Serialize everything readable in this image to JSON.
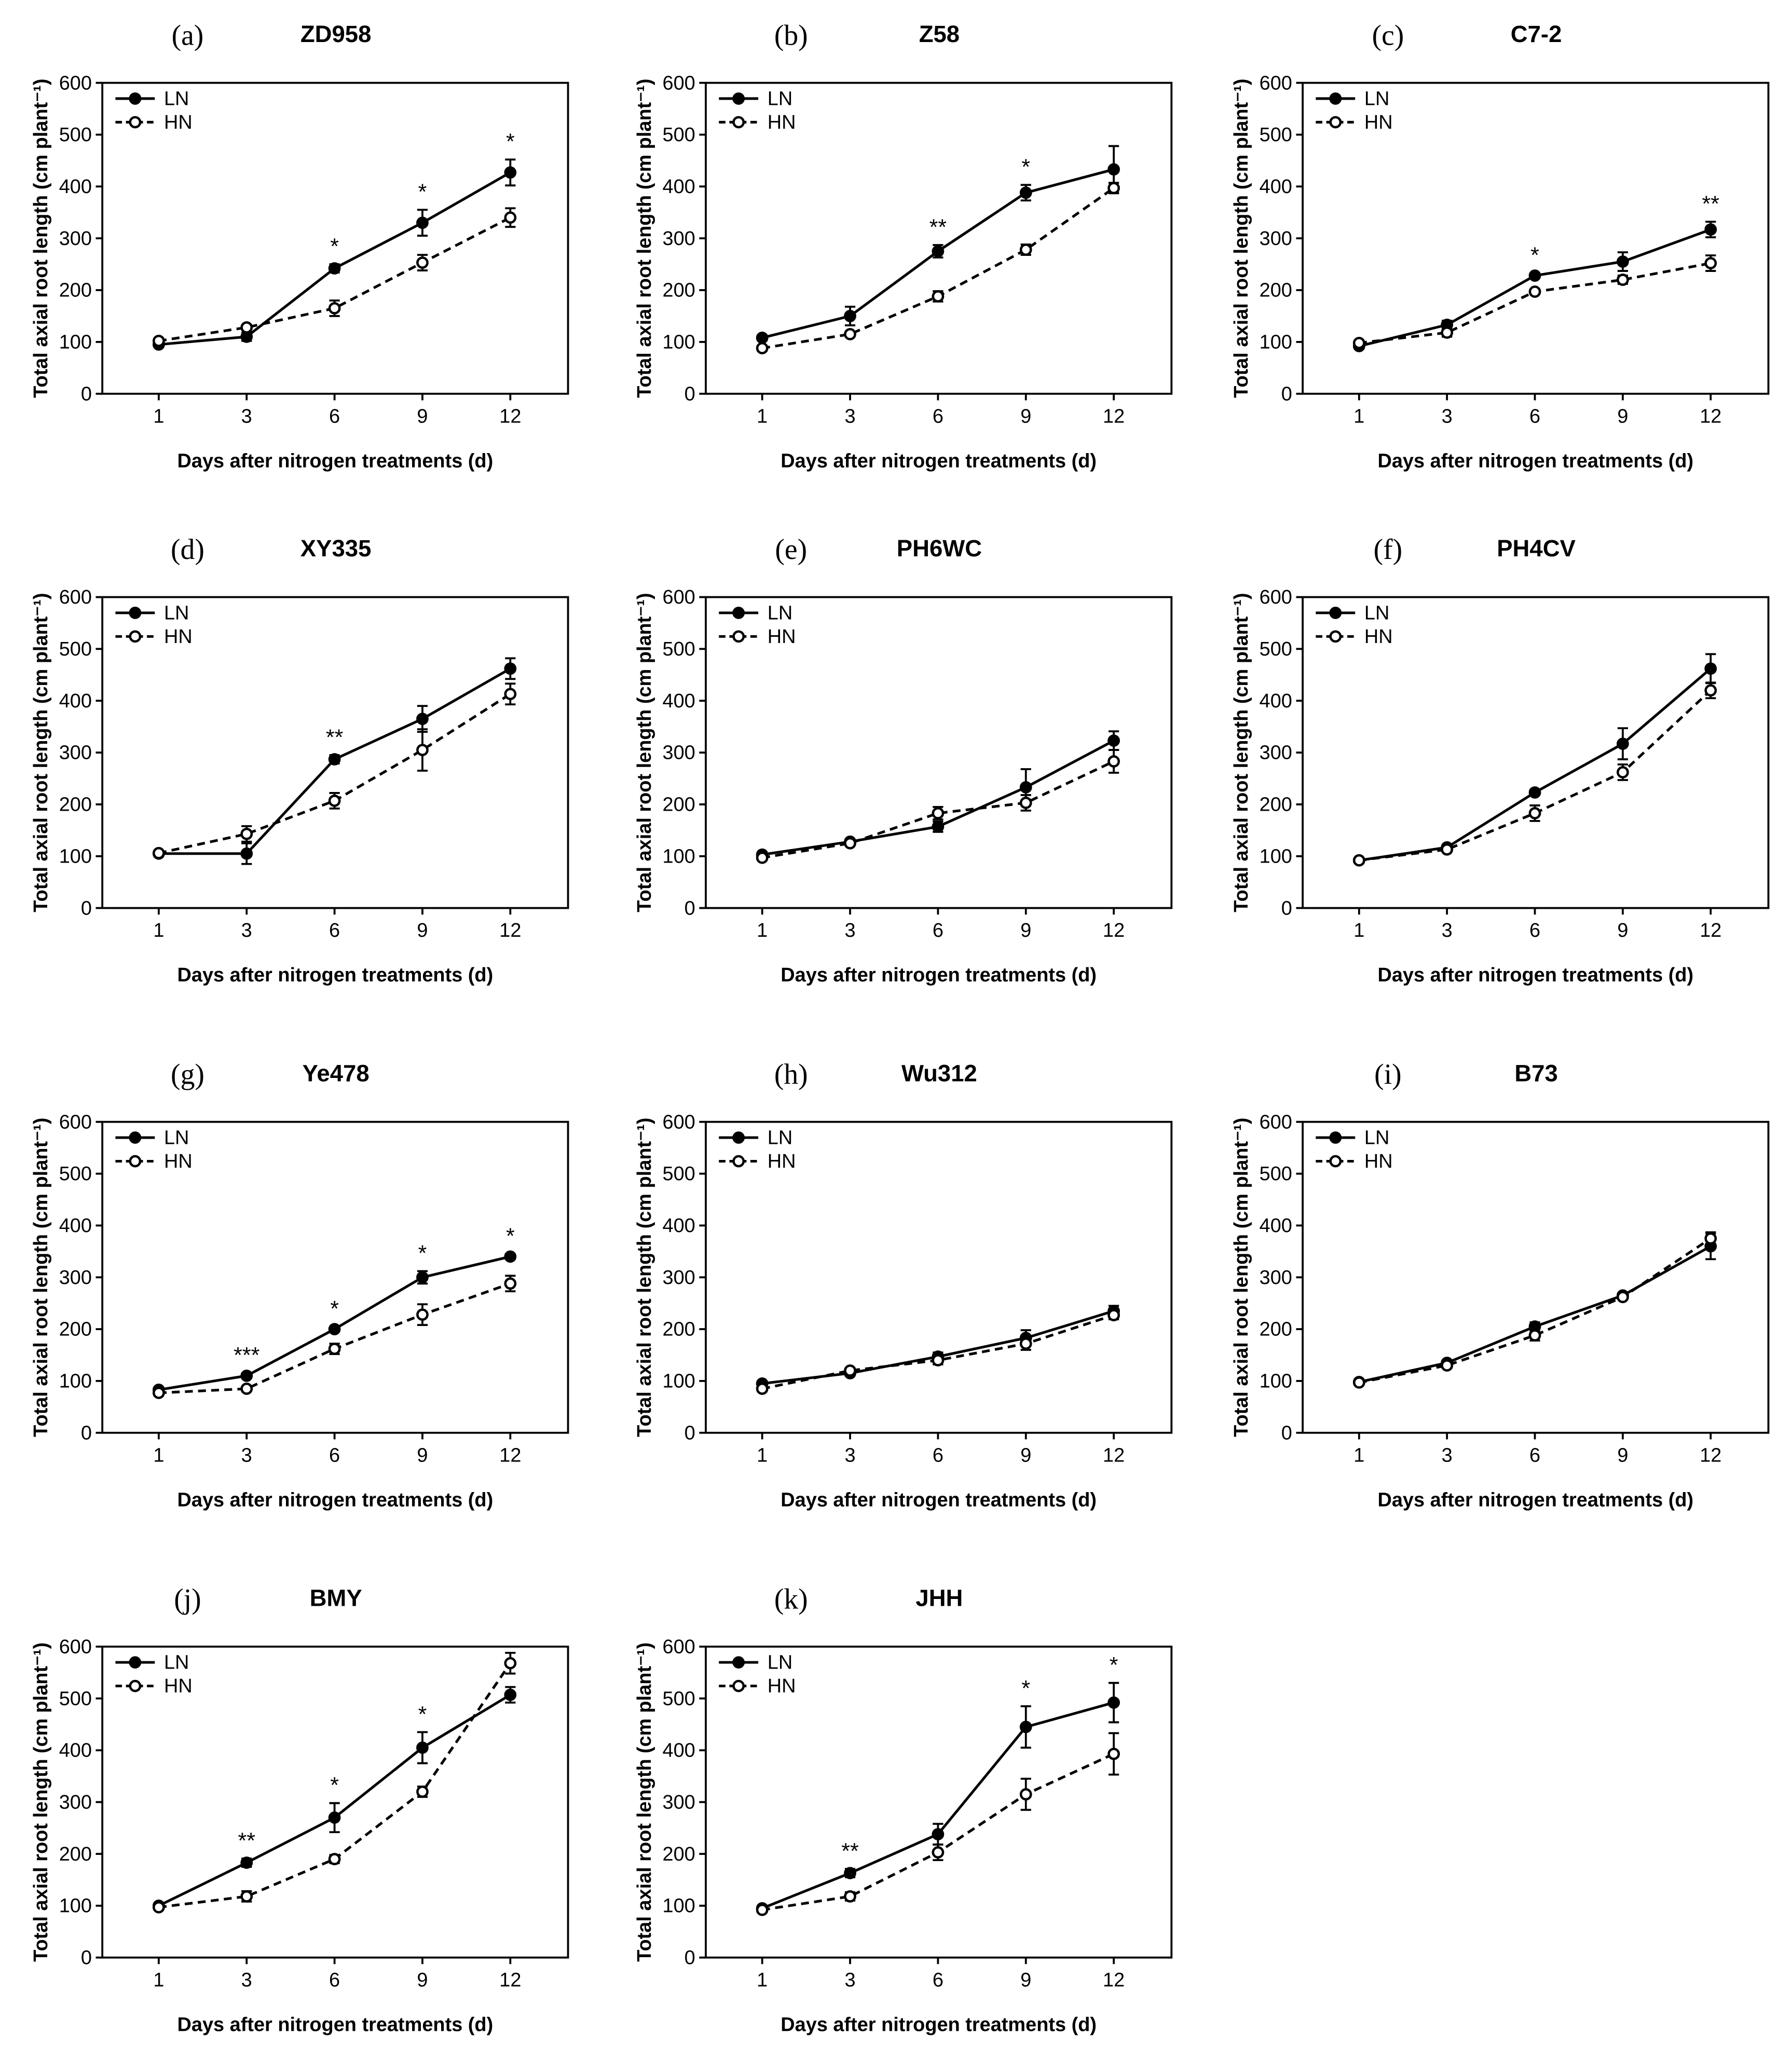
{
  "chart_data": [
    {
      "type": "line",
      "panel": "(a)",
      "title": "ZD958",
      "xlabel": "Days after nitrogen treatments (d)",
      "ylabel": "Total axial root length (cm plant⁻¹)",
      "categories": [
        1,
        3,
        6,
        9,
        12
      ],
      "ylim": [
        0,
        600
      ],
      "yticks": [
        0,
        100,
        200,
        300,
        400,
        500,
        600
      ],
      "legend": "upper left",
      "series": [
        {
          "name": "LN",
          "color": "#000000",
          "line_style": "solid",
          "marker": "filled",
          "values": [
            95,
            110,
            242,
            330,
            427
          ],
          "errors": [
            5,
            8,
            8,
            25,
            25
          ]
        },
        {
          "name": "HN",
          "color": "#000000",
          "line_style": "dashed",
          "marker": "open",
          "values": [
            102,
            128,
            165,
            253,
            340
          ],
          "errors": [
            5,
            5,
            15,
            15,
            18
          ]
        }
      ],
      "significance": [
        null,
        null,
        "*",
        "*",
        "*"
      ]
    },
    {
      "type": "line",
      "panel": "(b)",
      "title": "Z58",
      "xlabel": "Days after nitrogen treatments (d)",
      "ylabel": "Total axial root length (cm plant⁻¹)",
      "categories": [
        1,
        3,
        6,
        9,
        12
      ],
      "ylim": [
        0,
        600
      ],
      "yticks": [
        0,
        100,
        200,
        300,
        400,
        500,
        600
      ],
      "legend": "upper left",
      "series": [
        {
          "name": "LN",
          "color": "#000000",
          "line_style": "solid",
          "marker": "filled",
          "values": [
            108,
            150,
            275,
            388,
            433
          ],
          "errors": [
            5,
            18,
            12,
            15,
            45
          ]
        },
        {
          "name": "HN",
          "color": "#000000",
          "line_style": "dashed",
          "marker": "open",
          "values": [
            88,
            115,
            188,
            278,
            397
          ],
          "errors": [
            5,
            5,
            10,
            10,
            10
          ]
        }
      ],
      "significance": [
        null,
        null,
        "**",
        "*",
        null
      ]
    },
    {
      "type": "line",
      "panel": "(c)",
      "title": "C7-2",
      "xlabel": "Days after nitrogen treatments (d)",
      "ylabel": "Total axial root length (cm plant⁻¹)",
      "categories": [
        1,
        3,
        6,
        9,
        12
      ],
      "ylim": [
        0,
        600
      ],
      "yticks": [
        0,
        100,
        200,
        300,
        400,
        500,
        600
      ],
      "legend": "upper left",
      "series": [
        {
          "name": "LN",
          "color": "#000000",
          "line_style": "solid",
          "marker": "filled",
          "values": [
            92,
            133,
            228,
            255,
            317
          ],
          "errors": [
            5,
            8,
            5,
            18,
            15
          ]
        },
        {
          "name": "HN",
          "color": "#000000",
          "line_style": "dashed",
          "marker": "open",
          "values": [
            98,
            118,
            197,
            220,
            252
          ],
          "errors": [
            5,
            8,
            5,
            8,
            15
          ]
        }
      ],
      "significance": [
        null,
        null,
        "*",
        null,
        "**"
      ]
    },
    {
      "type": "line",
      "panel": "(d)",
      "title": "XY335",
      "xlabel": "Days after nitrogen treatments (d)",
      "ylabel": "Total axial root length (cm plant⁻¹)",
      "categories": [
        1,
        3,
        6,
        9,
        12
      ],
      "ylim": [
        0,
        600
      ],
      "yticks": [
        0,
        100,
        200,
        300,
        400,
        500,
        600
      ],
      "legend": "upper left",
      "series": [
        {
          "name": "LN",
          "color": "#000000",
          "line_style": "solid",
          "marker": "filled",
          "values": [
            105,
            105,
            287,
            365,
            462
          ],
          "errors": [
            5,
            20,
            8,
            25,
            20
          ]
        },
        {
          "name": "HN",
          "color": "#000000",
          "line_style": "dashed",
          "marker": "open",
          "values": [
            106,
            143,
            207,
            305,
            413
          ],
          "errors": [
            5,
            15,
            15,
            40,
            20
          ]
        }
      ],
      "significance": [
        null,
        null,
        "**",
        null,
        null
      ]
    },
    {
      "type": "line",
      "panel": "(e)",
      "title": "PH6WC",
      "xlabel": "Days after nitrogen treatments (d)",
      "ylabel": "Total axial root length (cm plant⁻¹)",
      "categories": [
        1,
        3,
        6,
        9,
        12
      ],
      "ylim": [
        0,
        600
      ],
      "yticks": [
        0,
        100,
        200,
        300,
        400,
        500,
        600
      ],
      "legend": "upper left",
      "series": [
        {
          "name": "LN",
          "color": "#000000",
          "line_style": "solid",
          "marker": "filled",
          "values": [
            103,
            128,
            157,
            233,
            323
          ],
          "errors": [
            5,
            5,
            10,
            35,
            18
          ]
        },
        {
          "name": "HN",
          "color": "#000000",
          "line_style": "dashed",
          "marker": "open",
          "values": [
            97,
            125,
            183,
            203,
            283
          ],
          "errors": [
            5,
            5,
            12,
            15,
            22
          ]
        }
      ]
    },
    {
      "type": "line",
      "panel": "(f)",
      "title": "PH4CV",
      "xlabel": "Days after nitrogen treatments (d)",
      "ylabel": "Total axial root length (cm plant⁻¹)",
      "categories": [
        1,
        3,
        6,
        9,
        12
      ],
      "ylim": [
        0,
        600
      ],
      "yticks": [
        0,
        100,
        200,
        300,
        400,
        500,
        600
      ],
      "legend": "upper left",
      "series": [
        {
          "name": "LN",
          "color": "#000000",
          "line_style": "solid",
          "marker": "filled",
          "values": [
            92,
            117,
            223,
            317,
            462
          ],
          "errors": [
            5,
            5,
            5,
            30,
            28
          ]
        },
        {
          "name": "HN",
          "color": "#000000",
          "line_style": "dashed",
          "marker": "open",
          "values": [
            92,
            113,
            183,
            262,
            420
          ],
          "errors": [
            5,
            5,
            15,
            15,
            15
          ]
        }
      ]
    },
    {
      "type": "line",
      "panel": "(g)",
      "title": "Ye478",
      "xlabel": "Days after nitrogen treatments (d)",
      "ylabel": "Total axial root length (cm plant⁻¹)",
      "categories": [
        1,
        3,
        6,
        9,
        12
      ],
      "ylim": [
        0,
        600
      ],
      "yticks": [
        0,
        100,
        200,
        300,
        400,
        500,
        600
      ],
      "legend": "upper left",
      "series": [
        {
          "name": "LN",
          "color": "#000000",
          "line_style": "solid",
          "marker": "filled",
          "values": [
            83,
            110,
            200,
            300,
            340
          ],
          "errors": [
            5,
            5,
            5,
            12,
            5
          ]
        },
        {
          "name": "HN",
          "color": "#000000",
          "line_style": "dashed",
          "marker": "open",
          "values": [
            77,
            85,
            162,
            228,
            288
          ],
          "errors": [
            5,
            5,
            10,
            20,
            15
          ]
        }
      ],
      "significance": [
        null,
        "***",
        "*",
        "*",
        "*"
      ]
    },
    {
      "type": "line",
      "panel": "(h)",
      "title": "Wu312",
      "xlabel": "Days after nitrogen treatments (d)",
      "ylabel": "Total axial root length (cm plant⁻¹)",
      "categories": [
        1,
        3,
        6,
        9,
        12
      ],
      "ylim": [
        0,
        600
      ],
      "yticks": [
        0,
        100,
        200,
        300,
        400,
        500,
        600
      ],
      "legend": "upper left",
      "series": [
        {
          "name": "LN",
          "color": "#000000",
          "line_style": "solid",
          "marker": "filled",
          "values": [
            95,
            115,
            147,
            183,
            235
          ],
          "errors": [
            5,
            5,
            8,
            15,
            10
          ]
        },
        {
          "name": "HN",
          "color": "#000000",
          "line_style": "dashed",
          "marker": "open",
          "values": [
            85,
            120,
            140,
            172,
            227
          ],
          "errors": [
            5,
            5,
            8,
            12,
            8
          ]
        }
      ]
    },
    {
      "type": "line",
      "panel": "(i)",
      "title": "B73",
      "xlabel": "Days after nitrogen treatments (d)",
      "ylabel": "Total axial root length (cm plant⁻¹)",
      "categories": [
        1,
        3,
        6,
        9,
        12
      ],
      "ylim": [
        0,
        600
      ],
      "yticks": [
        0,
        100,
        200,
        300,
        400,
        500,
        600
      ],
      "legend": "upper left",
      "series": [
        {
          "name": "LN",
          "color": "#000000",
          "line_style": "solid",
          "marker": "filled",
          "values": [
            98,
            135,
            205,
            265,
            360
          ],
          "errors": [
            5,
            5,
            8,
            5,
            25
          ]
        },
        {
          "name": "HN",
          "color": "#000000",
          "line_style": "dashed",
          "marker": "open",
          "values": [
            97,
            130,
            188,
            262,
            375
          ],
          "errors": [
            5,
            5,
            10,
            5,
            12
          ]
        }
      ]
    },
    {
      "type": "line",
      "panel": "(j)",
      "title": "BMY",
      "xlabel": "Days after nitrogen treatments (d)",
      "ylabel": "Total axial root length (cm plant⁻¹)",
      "categories": [
        1,
        3,
        6,
        9,
        12
      ],
      "ylim": [
        0,
        600
      ],
      "yticks": [
        0,
        100,
        200,
        300,
        400,
        500,
        600
      ],
      "legend": "upper left",
      "series": [
        {
          "name": "LN",
          "color": "#000000",
          "line_style": "solid",
          "marker": "filled",
          "values": [
            100,
            183,
            270,
            405,
            507
          ],
          "errors": [
            5,
            8,
            28,
            30,
            15
          ]
        },
        {
          "name": "HN",
          "color": "#000000",
          "line_style": "dashed",
          "marker": "open",
          "values": [
            97,
            118,
            190,
            320,
            568
          ],
          "errors": [
            5,
            10,
            8,
            10,
            20
          ]
        }
      ],
      "significance": [
        null,
        "**",
        "*",
        "*",
        null
      ]
    },
    {
      "type": "line",
      "panel": "(k)",
      "title": "JHH",
      "xlabel": "Days after nitrogen treatments (d)",
      "ylabel": "Total axial root length (cm plant⁻¹)",
      "categories": [
        1,
        3,
        6,
        9,
        12
      ],
      "ylim": [
        0,
        600
      ],
      "yticks": [
        0,
        100,
        200,
        300,
        400,
        500,
        600
      ],
      "legend": "upper left",
      "series": [
        {
          "name": "LN",
          "color": "#000000",
          "line_style": "solid",
          "marker": "filled",
          "values": [
            95,
            163,
            238,
            445,
            492
          ],
          "errors": [
            5,
            8,
            20,
            40,
            38
          ]
        },
        {
          "name": "HN",
          "color": "#000000",
          "line_style": "dashed",
          "marker": "open",
          "values": [
            92,
            118,
            203,
            315,
            393
          ],
          "errors": [
            5,
            8,
            15,
            30,
            40
          ]
        }
      ],
      "significance": [
        null,
        "**",
        null,
        "*",
        "*"
      ]
    }
  ]
}
